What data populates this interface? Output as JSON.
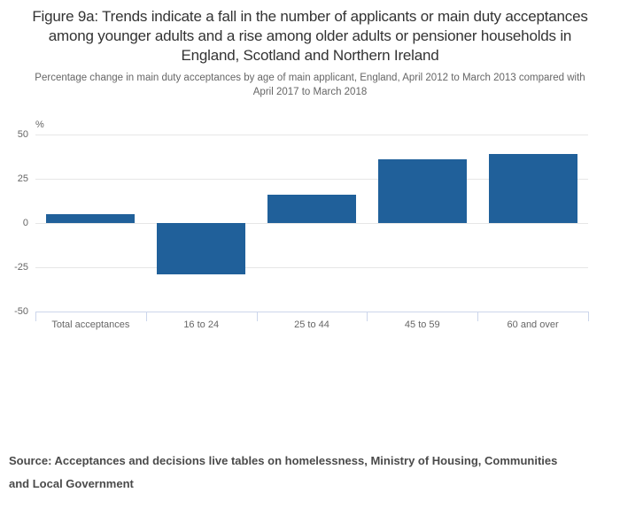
{
  "header": {
    "title": "Figure 9a: Trends indicate a fall in the number of applicants or main duty acceptances among younger adults and a rise among older adults or pensioner households in England, Scotland and Northern Ireland",
    "subtitle": "Percentage change in main duty acceptances by age of main applicant, England, April 2012 to March 2013 compared with April 2017 to March 2018"
  },
  "chart_data": {
    "type": "bar",
    "title": "Figure 9a: Trends indicate a fall in the number of applicants or main duty acceptances among younger adults and a rise among older adults or pensioner households in England, Scotland and Northern Ireland",
    "subtitle": "Percentage change in main duty acceptances by age of main applicant, England, April 2012 to March 2013 compared with April 2017 to March 2018",
    "categories": [
      "Total acceptances",
      "16 to 24",
      "25 to 44",
      "45 to 59",
      "60 and over"
    ],
    "values": [
      5,
      -29,
      16,
      36,
      39
    ],
    "xlabel": "",
    "ylabel": "%",
    "ylim": [
      -50,
      50
    ],
    "yticks": [
      50,
      25,
      0,
      -25,
      -50
    ],
    "grid": true,
    "legend": "none",
    "colors": {
      "bar": "#20609A",
      "gridline": "#e6e6e6",
      "axis_line": "#ccd6eb",
      "tick_label": "#666666"
    }
  },
  "footer": {
    "source": "Source: Acceptances and decisions live tables on homelessness, Ministry of Housing, Communities and Local Government"
  }
}
